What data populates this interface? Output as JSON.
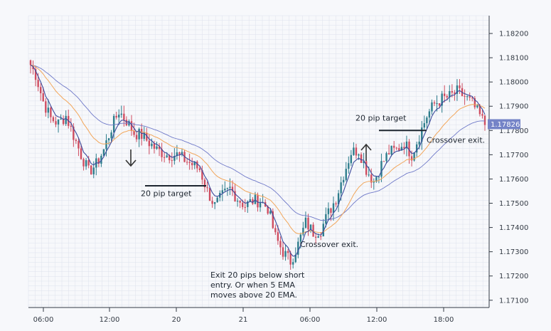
{
  "chart_data": {
    "type": "candlestick",
    "title": "",
    "xlabel": "",
    "ylabel": "",
    "x_tick_labels": [
      "06:00",
      "12:00",
      "20",
      "21",
      "06:00",
      "12:00",
      "18:00"
    ],
    "y_tick_labels": [
      "1.18200",
      "1.18100",
      "1.18000",
      "1.17900",
      "1.17800",
      "1.17700",
      "1.17600",
      "1.17500",
      "1.17400",
      "1.17300",
      "1.17200",
      "1.17100"
    ],
    "ylim": [
      1.1707,
      1.1825
    ],
    "current_price": "1.17826",
    "price_path": [
      [
        0,
        1.1807
      ],
      [
        2,
        1.1803
      ],
      [
        5,
        1.1792
      ],
      [
        8,
        1.1785
      ],
      [
        11,
        1.1783
      ],
      [
        14,
        1.1786
      ],
      [
        17,
        1.1778
      ],
      [
        20,
        1.177
      ],
      [
        23,
        1.1763
      ],
      [
        26,
        1.1766
      ],
      [
        29,
        1.1772
      ],
      [
        32,
        1.1781
      ],
      [
        35,
        1.1788
      ],
      [
        38,
        1.1784
      ],
      [
        41,
        1.1779
      ],
      [
        44,
        1.1778
      ],
      [
        47,
        1.1775
      ],
      [
        50,
        1.1772
      ],
      [
        54,
        1.177
      ],
      [
        58,
        1.177
      ],
      [
        61,
        1.1768
      ],
      [
        64,
        1.1766
      ],
      [
        67,
        1.1764
      ],
      [
        70,
        1.1755
      ],
      [
        73,
        1.1749
      ],
      [
        76,
        1.1753
      ],
      [
        79,
        1.1756
      ],
      [
        82,
        1.1752
      ],
      [
        85,
        1.1749
      ],
      [
        88,
        1.1751
      ],
      [
        91,
        1.1751
      ],
      [
        94,
        1.1748
      ],
      [
        97,
        1.1736
      ],
      [
        100,
        1.173
      ],
      [
        103,
        1.1726
      ],
      [
        106,
        1.1733
      ],
      [
        109,
        1.1742
      ],
      [
        112,
        1.1738
      ],
      [
        115,
        1.1739
      ],
      [
        118,
        1.1746
      ],
      [
        121,
        1.1752
      ],
      [
        124,
        1.1762
      ],
      [
        127,
        1.1771
      ],
      [
        130,
        1.1772
      ],
      [
        133,
        1.1764
      ],
      [
        136,
        1.1759
      ],
      [
        139,
        1.1766
      ],
      [
        142,
        1.1771
      ],
      [
        145,
        1.1772
      ],
      [
        148,
        1.1775
      ],
      [
        151,
        1.177
      ],
      [
        154,
        1.1778
      ],
      [
        157,
        1.1786
      ],
      [
        160,
        1.1791
      ],
      [
        163,
        1.1793
      ],
      [
        166,
        1.1794
      ],
      [
        169,
        1.1796
      ],
      [
        172,
        1.1794
      ],
      [
        175,
        1.1791
      ],
      [
        178,
        1.1786
      ],
      [
        180,
        1.17826
      ]
    ],
    "series": [
      {
        "name": "5 EMA",
        "color": "#3c4a9c"
      },
      {
        "name": "20 EMA",
        "color": "#f2a65a"
      },
      {
        "name": "Slow MA",
        "color": "#6e78c8"
      }
    ],
    "annotations": [
      {
        "text": "20 pip target",
        "label_price": 1.1753,
        "line_price": 1.17572
      },
      {
        "text": "Crossover exit.",
        "label_price": 1.1732
      },
      {
        "text": "20 pip target",
        "label_price": 1.1784,
        "line_price": 1.178
      },
      {
        "text": "Crossover exit.",
        "label_price": 1.1775
      }
    ],
    "note_lines": [
      "Exit 20 pips below short",
      "entry.  Or when 5 EMA",
      "moves above 20 EMA."
    ]
  },
  "colors": {
    "bull": "#2e7d8c",
    "bear": "#cf4d60",
    "grid": "#dde2ec",
    "axis": "#333a44",
    "price_tag": "#7483c7"
  }
}
